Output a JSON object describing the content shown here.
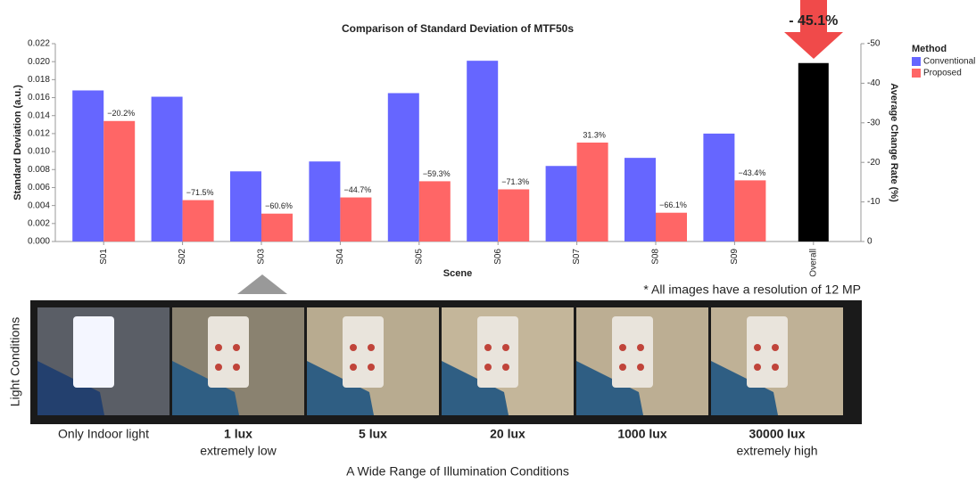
{
  "chart_data": {
    "type": "bar",
    "title": "Comparison of Standard Deviation of MTF50s",
    "x_label": "Scene",
    "y_label": "Standard Deviation (a.u.)",
    "y2_label": "Average Change Rate (%)",
    "categories": [
      "S01",
      "S02",
      "S03",
      "S04",
      "S05",
      "S06",
      "S07",
      "S08",
      "S09",
      "Overall"
    ],
    "legend_title": "Method",
    "series": [
      {
        "name": "Conventional",
        "color": "#6666ff",
        "values": [
          0.0168,
          0.0161,
          0.0078,
          0.0089,
          0.0165,
          0.0201,
          0.0084,
          0.0093,
          0.012,
          null
        ]
      },
      {
        "name": "Proposed",
        "color": "#ff6666",
        "values": [
          0.0134,
          0.0046,
          0.0031,
          0.0049,
          0.0067,
          0.0058,
          0.011,
          0.0032,
          0.0068,
          null
        ],
        "change_labels": [
          "−20.2%",
          "−71.5%",
          "−60.6%",
          "−44.7%",
          "−59.3%",
          "−71.3%",
          "31.3%",
          "−66.1%",
          "−43.4%",
          null
        ]
      },
      {
        "axis": "y2",
        "color": "#000000",
        "values": [
          null,
          null,
          null,
          null,
          null,
          null,
          null,
          null,
          null,
          -45.1
        ],
        "value_labels": [
          null,
          null,
          null,
          null,
          null,
          null,
          null,
          null,
          null,
          "- 45.1%"
        ]
      }
    ],
    "ylim": [
      0,
      0.022
    ],
    "yticks": [
      {
        "value": 0,
        "label": "0.000"
      },
      {
        "value": 0.002,
        "label": "0.002"
      },
      {
        "value": 0.004,
        "label": "0.004"
      },
      {
        "value": 0.006,
        "label": "0.006"
      },
      {
        "value": 0.008,
        "label": "0.008"
      },
      {
        "value": 0.01,
        "label": "0.010"
      },
      {
        "value": 0.012,
        "label": "0.012"
      },
      {
        "value": 0.014,
        "label": "0.014"
      },
      {
        "value": 0.016,
        "label": "0.016"
      },
      {
        "value": 0.018,
        "label": "0.018"
      },
      {
        "value": 0.02,
        "label": "0.020"
      },
      {
        "value": 0.022,
        "label": "0.022"
      }
    ],
    "y2lim": [
      0,
      -50
    ],
    "y2ticks": [
      0,
      -10,
      -20,
      -30,
      -40,
      -50
    ]
  },
  "note": "* All images have a resolution of 12 MP",
  "side_label": "Light Conditions",
  "conditions": [
    {
      "label": "Only Indoor light",
      "note": null
    },
    {
      "label": "1 lux",
      "note": "extremely low"
    },
    {
      "label": "5 lux",
      "note": null
    },
    {
      "label": "20 lux",
      "note": null
    },
    {
      "label": "1000 lux",
      "note": null
    },
    {
      "label": "30000 lux",
      "note": "extremely high"
    }
  ],
  "caption": "A Wide Range of Illumination Conditions"
}
